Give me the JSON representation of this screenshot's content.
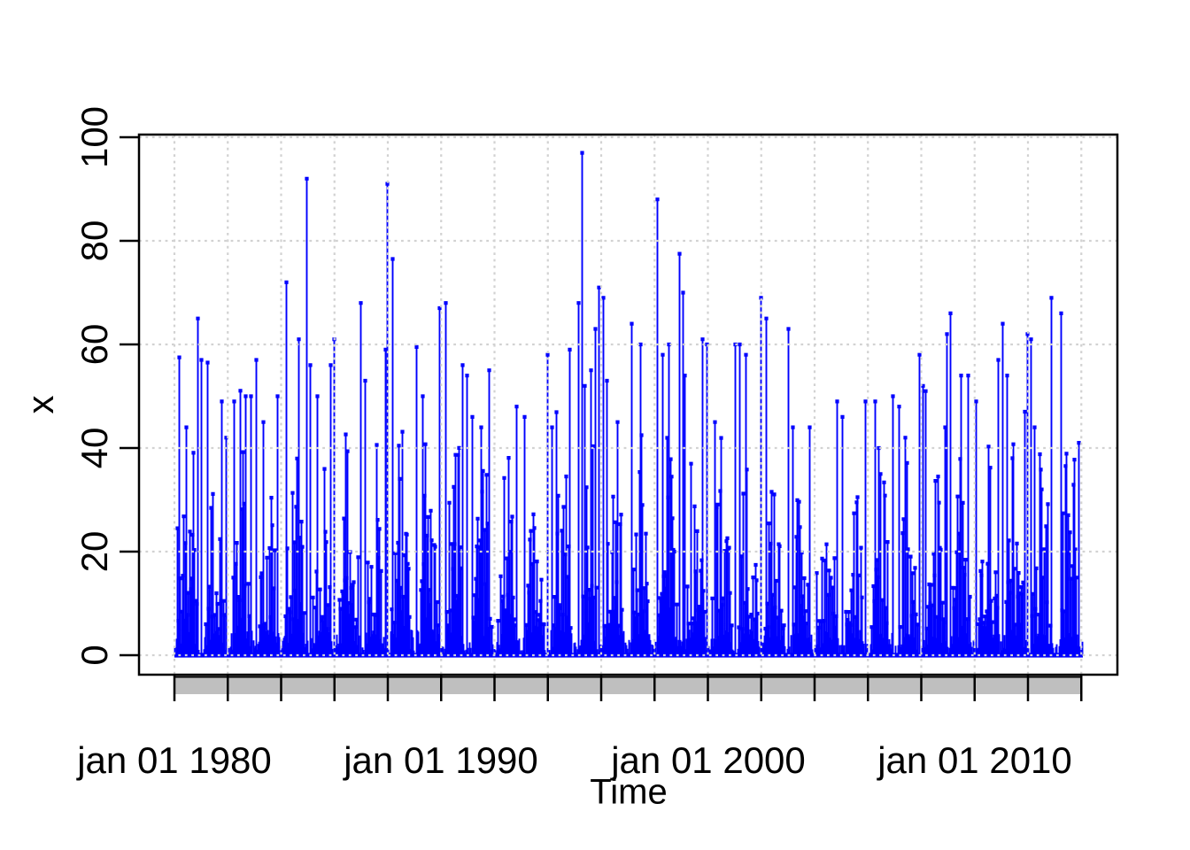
{
  "chart_data": {
    "type": "spike",
    "description": "Dense daily-style time series drawn as vertical blue spikes (type h) with point caps, light dotted grid, gray time-axis band with 2-year ticks",
    "title": "",
    "xlabel": "Time",
    "ylabel": "x",
    "x_domain": [
      1980.0,
      2014.07
    ],
    "y_domain": [
      0,
      100
    ],
    "ylim_data_max": 97,
    "x_tick_labels": [
      "jan 01 1980",
      "jan 01 1990",
      "jan 01 2000",
      "jan 01 2010"
    ],
    "x_tick_years": [
      1980,
      1990,
      2000,
      2010
    ],
    "minor_tick_interval_years": 2,
    "y_tick_labels": [
      "0",
      "20",
      "40",
      "60",
      "80",
      "100"
    ],
    "y_tick_values": [
      0,
      20,
      40,
      60,
      80,
      100
    ],
    "grid": true,
    "colors": {
      "series": "#0000ff",
      "grid": "#d2d2d2",
      "axis_band_fill": "#bfbfbf",
      "frame": "#000000",
      "background": "#ffffff",
      "text": "#000000"
    },
    "peaks": [
      [
        1980.17,
        57.5
      ],
      [
        1980.43,
        44
      ],
      [
        1980.86,
        65
      ],
      [
        1981.0,
        57
      ],
      [
        1981.23,
        56.5
      ],
      [
        1981.76,
        49
      ],
      [
        1981.93,
        42
      ],
      [
        1982.22,
        49
      ],
      [
        1982.66,
        50
      ],
      [
        1982.85,
        50
      ],
      [
        1983.05,
        57
      ],
      [
        1983.32,
        45
      ],
      [
        1983.85,
        50
      ],
      [
        1984.18,
        72
      ],
      [
        1984.65,
        61
      ],
      [
        1984.95,
        92
      ],
      [
        1985.08,
        56
      ],
      [
        1985.34,
        50
      ],
      [
        1985.84,
        56
      ],
      [
        1985.97,
        61
      ],
      [
        1986.97,
        68
      ],
      [
        1987.14,
        53
      ],
      [
        1987.9,
        59
      ],
      [
        1987.97,
        91
      ],
      [
        1988.17,
        76.5
      ],
      [
        1989.06,
        59.5
      ],
      [
        1989.3,
        50
      ],
      [
        1989.92,
        67
      ],
      [
        1990.16,
        68
      ],
      [
        1990.79,
        56
      ],
      [
        1990.96,
        54
      ],
      [
        1991.15,
        46
      ],
      [
        1991.49,
        44
      ],
      [
        1991.78,
        55
      ],
      [
        1992.81,
        48
      ],
      [
        1993.11,
        46
      ],
      [
        1993.97,
        58
      ],
      [
        1994.14,
        44
      ],
      [
        1994.8,
        59
      ],
      [
        1995.14,
        68
      ],
      [
        1995.27,
        97
      ],
      [
        1995.37,
        52
      ],
      [
        1995.77,
        63
      ],
      [
        1995.9,
        71
      ],
      [
        1996.07,
        69
      ],
      [
        1996.2,
        53
      ],
      [
        1996.6,
        45
      ],
      [
        1997.13,
        64
      ],
      [
        1997.46,
        60
      ],
      [
        1998.09,
        88
      ],
      [
        1998.29,
        58
      ],
      [
        1998.52,
        60
      ],
      [
        1998.92,
        77.5
      ],
      [
        1999.05,
        70
      ],
      [
        1999.12,
        54
      ],
      [
        1999.78,
        61
      ],
      [
        1999.95,
        60
      ],
      [
        2000.25,
        45
      ],
      [
        2001.01,
        60
      ],
      [
        2001.18,
        60
      ],
      [
        2001.41,
        58
      ],
      [
        2001.97,
        69
      ],
      [
        2002.17,
        65
      ],
      [
        2003.0,
        63
      ],
      [
        2003.17,
        44
      ],
      [
        2003.8,
        44
      ],
      [
        2004.83,
        49
      ],
      [
        2005.03,
        46
      ],
      [
        2005.89,
        49
      ],
      [
        2006.26,
        49
      ],
      [
        2006.39,
        40
      ],
      [
        2006.92,
        50
      ],
      [
        2007.15,
        48
      ],
      [
        2007.39,
        42
      ],
      [
        2007.92,
        58
      ],
      [
        2008.05,
        52
      ],
      [
        2008.15,
        51
      ],
      [
        2008.88,
        44
      ],
      [
        2008.95,
        62
      ],
      [
        2009.08,
        66
      ],
      [
        2009.48,
        54
      ],
      [
        2009.74,
        54
      ],
      [
        2010.04,
        49
      ],
      [
        2010.87,
        57
      ],
      [
        2011.04,
        64
      ],
      [
        2011.2,
        54
      ],
      [
        2011.87,
        47
      ],
      [
        2011.97,
        62
      ],
      [
        2012.1,
        61
      ],
      [
        2012.24,
        44
      ],
      [
        2012.87,
        69
      ],
      [
        2013.23,
        66
      ],
      [
        2013.9,
        41
      ]
    ],
    "texture": {
      "seed": 20140101,
      "monthly_envelope": [
        0.06,
        0.1,
        0.3,
        0.55,
        0.85,
        1.0,
        1.0,
        0.95,
        0.9,
        0.6,
        0.25,
        0.08
      ],
      "year_amplitude": [
        1.0,
        0.9,
        0.95,
        1.0,
        1.05,
        1.0,
        1.0,
        1.0,
        1.05,
        1.0,
        1.05,
        0.95,
        0.9,
        0.85,
        1.0,
        1.05,
        1.0,
        1.0,
        1.05,
        1.05,
        1.0,
        1.0,
        0.95,
        0.9,
        0.8,
        0.8,
        0.85,
        0.85,
        0.85,
        0.9,
        0.95,
        0.95,
        1.0,
        0.95
      ],
      "base_value": 4,
      "spread": 40,
      "burst_chance": 0.05,
      "texture_cap": 55
    }
  }
}
